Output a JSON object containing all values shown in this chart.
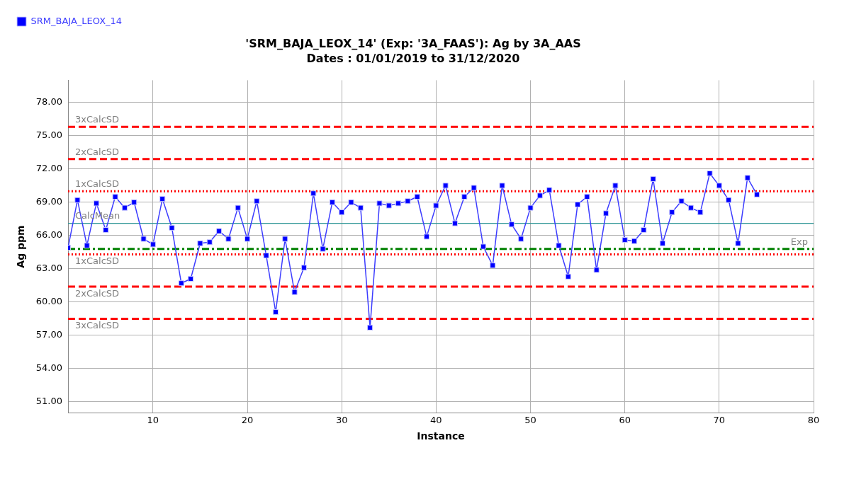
{
  "chart_data": {
    "type": "line",
    "title": "'SRM_BAJA_LEOX_14' (Exp: '3A_FAAS'): Ag by 3A_AAS",
    "subtitle": "Dates : 01/01/2019 to 31/12/2020",
    "xlabel": "Instance",
    "ylabel": "Ag ppm",
    "x": [
      1,
      2,
      3,
      4,
      5,
      6,
      7,
      8,
      9,
      10,
      11,
      12,
      13,
      14,
      15,
      16,
      17,
      18,
      19,
      20,
      21,
      22,
      23,
      24,
      25,
      26,
      27,
      28,
      29,
      30,
      31,
      32,
      33,
      34,
      35,
      36,
      37,
      38,
      39,
      40,
      41,
      42,
      43,
      44,
      45,
      46,
      47,
      48,
      49,
      50,
      51,
      52,
      53,
      54,
      55,
      56,
      57,
      58,
      59,
      60,
      61,
      62,
      63,
      64,
      65,
      66,
      67,
      68,
      69,
      70,
      71,
      72,
      73,
      74
    ],
    "series": [
      {
        "name": "SRM_BAJA_LEOX_14",
        "color": "#0000ff",
        "values": [
          64.9,
          69.2,
          65.1,
          68.9,
          66.5,
          69.5,
          68.5,
          69.0,
          65.7,
          65.2,
          69.3,
          66.7,
          61.7,
          62.1,
          65.3,
          65.4,
          66.4,
          65.7,
          68.5,
          65.7,
          69.1,
          64.2,
          59.1,
          65.7,
          60.9,
          63.1,
          69.8,
          64.8,
          69.0,
          68.1,
          69.0,
          68.5,
          57.7,
          68.9,
          68.7,
          68.9,
          69.1,
          69.5,
          65.9,
          68.7,
          70.5,
          67.1,
          69.5,
          70.3,
          65.0,
          63.3,
          70.5,
          67.0,
          65.7,
          68.5,
          69.6,
          70.1,
          65.1,
          62.3,
          68.8,
          69.5,
          62.9,
          68.0,
          70.5,
          65.6,
          65.5,
          66.5,
          71.1,
          65.3,
          68.1,
          69.1,
          68.5,
          68.1,
          71.6,
          70.5,
          69.2,
          65.3,
          71.2,
          69.7
        ]
      }
    ],
    "xlim": [
      1,
      80
    ],
    "xticks": [
      10,
      20,
      30,
      40,
      50,
      60,
      70,
      80
    ],
    "ylim": [
      50,
      80
    ],
    "yticks": [
      {
        "value": 51,
        "label": "51.00"
      },
      {
        "value": 54,
        "label": "54.00"
      },
      {
        "value": 57,
        "label": "57.00"
      },
      {
        "value": 60,
        "label": "60.00"
      },
      {
        "value": 63,
        "label": "63.00"
      },
      {
        "value": 66,
        "label": "66.00"
      },
      {
        "value": 69,
        "label": "69.00"
      },
      {
        "value": 72,
        "label": "72.00"
      },
      {
        "value": 75,
        "label": "75.00"
      },
      {
        "value": 78,
        "label": "78.00"
      }
    ],
    "ref_lines": [
      {
        "axis": "y",
        "value": 75.8,
        "label": "3xCalcSD",
        "color": "#ff0000",
        "line_style": "dashed"
      },
      {
        "axis": "y",
        "value": 72.9,
        "label": "2xCalcSD",
        "color": "#ff0000",
        "line_style": "dashed"
      },
      {
        "axis": "y",
        "value": 70.0,
        "label": "1xCalcSD",
        "color": "#ff0000",
        "line_style": "dotted"
      },
      {
        "axis": "y",
        "value": 67.1,
        "label": "CalcMean",
        "color": "#339999",
        "line_style": "solid"
      },
      {
        "axis": "y",
        "value": 64.8,
        "label": "Exp",
        "color": "#008000",
        "line_style": "dashdot"
      },
      {
        "axis": "y",
        "value": 64.3,
        "label": "1xCalcSD",
        "color": "#ff0000",
        "line_style": "dotted"
      },
      {
        "axis": "y",
        "value": 61.4,
        "label": "2xCalcSD",
        "color": "#ff0000",
        "line_style": "dashed"
      },
      {
        "axis": "y",
        "value": 58.5,
        "label": "3xCalcSD",
        "color": "#ff0000",
        "line_style": "dashed"
      }
    ],
    "grid": true,
    "legend": "top left",
    "marker": "square",
    "line_style": "solid"
  }
}
